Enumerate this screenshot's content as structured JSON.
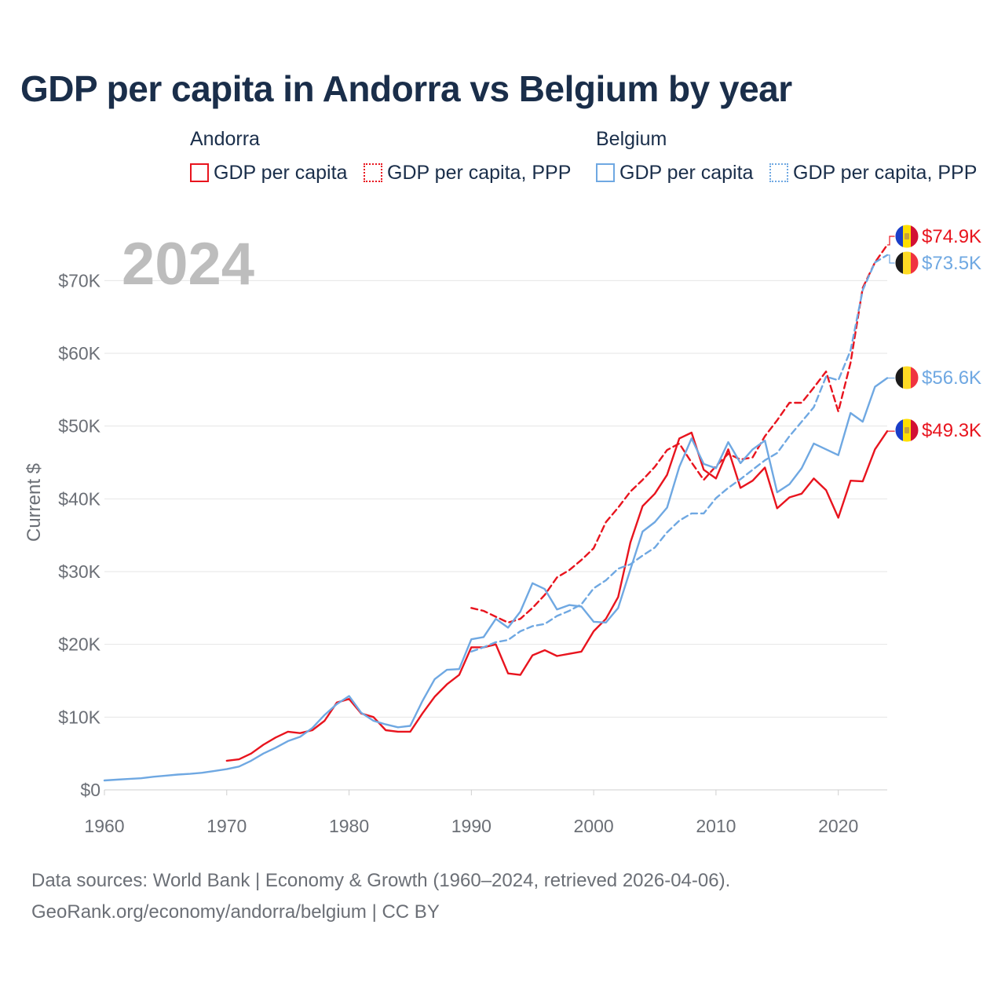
{
  "title": "GDP per capita in Andorra vs Belgium by year",
  "legend": {
    "groups": [
      {
        "name": "Andorra",
        "items": [
          {
            "label": "GDP per capita",
            "color": "#e8141e",
            "style": "solid"
          },
          {
            "label": "GDP per capita, PPP",
            "color": "#e8141e",
            "style": "dotted"
          }
        ]
      },
      {
        "name": "Belgium",
        "items": [
          {
            "label": "GDP per capita",
            "color": "#6fa8e2",
            "style": "solid"
          },
          {
            "label": "GDP per capita, PPP",
            "color": "#6fa8e2",
            "style": "dotted"
          }
        ]
      }
    ]
  },
  "year_label": "2024",
  "footer": {
    "line1": "Data sources: World Bank | Economy & Growth (1960–2024, retrieved 2026-04-06).",
    "line2": "GeoRank.org/economy/andorra/belgium | CC BY"
  },
  "chart_data": {
    "type": "line",
    "title": "GDP per capita in Andorra vs Belgium by year",
    "xlabel": "",
    "ylabel": "Current $",
    "xlim": [
      1960,
      2024
    ],
    "ylim": [
      0,
      75000
    ],
    "x_ticks": [
      1960,
      1970,
      1980,
      1990,
      2000,
      2010,
      2020
    ],
    "x_tick_labels": [
      "1960",
      "1970",
      "1980",
      "1990",
      "2000",
      "2010",
      "2020"
    ],
    "y_ticks": [
      0,
      10000,
      20000,
      30000,
      40000,
      50000,
      60000,
      70000
    ],
    "y_tick_labels": [
      "$0",
      "$10K",
      "$20K",
      "$30K",
      "$40K",
      "$50K",
      "$60K",
      "$70K"
    ],
    "grid": true,
    "series": [
      {
        "name": "Andorra GDP per capita",
        "color": "#e8141e",
        "dash": "solid",
        "x": [
          1970,
          1971,
          1972,
          1973,
          1974,
          1975,
          1976,
          1977,
          1978,
          1979,
          1980,
          1981,
          1982,
          1983,
          1984,
          1985,
          1986,
          1987,
          1988,
          1989,
          1990,
          1991,
          1992,
          1993,
          1994,
          1995,
          1996,
          1997,
          1998,
          1999,
          2000,
          2001,
          2002,
          2003,
          2004,
          2005,
          2006,
          2007,
          2008,
          2009,
          2010,
          2011,
          2012,
          2013,
          2014,
          2015,
          2016,
          2017,
          2018,
          2019,
          2020,
          2021,
          2022,
          2023,
          2024
        ],
        "values": [
          4000,
          4200,
          5000,
          6200,
          7200,
          8000,
          7800,
          8200,
          9500,
          12000,
          12500,
          10500,
          10000,
          8200,
          8000,
          8000,
          10500,
          12800,
          14500,
          15800,
          19600,
          19600,
          20000,
          16000,
          15800,
          18500,
          19200,
          18400,
          18700,
          19000,
          21800,
          23500,
          26500,
          34000,
          39000,
          40700,
          43300,
          48300,
          49100,
          44000,
          42800,
          46800,
          41500,
          42500,
          44300,
          38700,
          40200,
          40700,
          42800,
          41200,
          37400,
          42500,
          42400,
          46800,
          49300
        ],
        "end_label": "$49.3K"
      },
      {
        "name": "Andorra GDP per capita, PPP",
        "color": "#e8141e",
        "dash": "dashed",
        "x": [
          1990,
          1991,
          1992,
          1993,
          1994,
          1995,
          1996,
          1997,
          1998,
          1999,
          2000,
          2001,
          2002,
          2003,
          2004,
          2005,
          2006,
          2007,
          2008,
          2009,
          2010,
          2011,
          2012,
          2013,
          2014,
          2015,
          2016,
          2017,
          2018,
          2019,
          2020,
          2021,
          2022,
          2023,
          2024
        ],
        "values": [
          25000,
          24600,
          23800,
          23000,
          23500,
          25000,
          26800,
          29200,
          30200,
          31600,
          33200,
          36800,
          38800,
          41000,
          42600,
          44400,
          46700,
          47600,
          45000,
          42600,
          44500,
          46200,
          45400,
          45700,
          48600,
          50800,
          53200,
          53200,
          55300,
          57500,
          52000,
          58700,
          69000,
          72500,
          74900
        ],
        "end_label": "$74.9K"
      },
      {
        "name": "Belgium GDP per capita",
        "color": "#6fa8e2",
        "dash": "solid",
        "x": [
          1960,
          1961,
          1962,
          1963,
          1964,
          1965,
          1966,
          1967,
          1968,
          1969,
          1970,
          1971,
          1972,
          1973,
          1974,
          1975,
          1976,
          1977,
          1978,
          1979,
          1980,
          1981,
          1982,
          1983,
          1984,
          1985,
          1986,
          1987,
          1988,
          1989,
          1990,
          1991,
          1992,
          1993,
          1994,
          1995,
          1996,
          1997,
          1998,
          1999,
          2000,
          2001,
          2002,
          2003,
          2004,
          2005,
          2006,
          2007,
          2008,
          2009,
          2010,
          2011,
          2012,
          2013,
          2014,
          2015,
          2016,
          2017,
          2018,
          2019,
          2020,
          2021,
          2022,
          2023,
          2024
        ],
        "values": [
          1300,
          1400,
          1500,
          1600,
          1800,
          1950,
          2100,
          2200,
          2350,
          2600,
          2850,
          3200,
          4000,
          5000,
          5800,
          6700,
          7300,
          8500,
          10300,
          11800,
          12900,
          10600,
          9500,
          9000,
          8600,
          8800,
          12200,
          15200,
          16500,
          16600,
          20700,
          21000,
          23500,
          22300,
          24500,
          28400,
          27600,
          24800,
          25400,
          25200,
          23100,
          23000,
          25000,
          30300,
          35500,
          36800,
          38800,
          44400,
          48300,
          44800,
          44200,
          47800,
          44900,
          46800,
          48000,
          40900,
          42000,
          44200,
          47600,
          46800,
          46000,
          51800,
          50600,
          55400,
          56600
        ],
        "end_label": "$56.6K"
      },
      {
        "name": "Belgium GDP per capita, PPP",
        "color": "#6fa8e2",
        "dash": "dashed",
        "x": [
          1990,
          1991,
          1992,
          1993,
          1994,
          1995,
          1996,
          1997,
          1998,
          1999,
          2000,
          2001,
          2002,
          2003,
          2004,
          2005,
          2006,
          2007,
          2008,
          2009,
          2010,
          2011,
          2012,
          2013,
          2014,
          2015,
          2016,
          2017,
          2018,
          2019,
          2020,
          2021,
          2022,
          2023,
          2024
        ],
        "values": [
          19000,
          19600,
          20300,
          20600,
          21800,
          22500,
          22800,
          23900,
          24600,
          25500,
          27700,
          28800,
          30400,
          31000,
          32200,
          33300,
          35400,
          37000,
          38000,
          38000,
          40100,
          41500,
          42700,
          44000,
          45300,
          46300,
          48600,
          50600,
          52600,
          56800,
          56300,
          60400,
          68700,
          72500,
          73500
        ],
        "end_label": "$73.5K"
      }
    ],
    "end_markers": [
      {
        "country": "Andorra",
        "series": "Andorra GDP per capita, PPP",
        "flag": "andorra-flag"
      },
      {
        "country": "Belgium",
        "series": "Belgium GDP per capita, PPP",
        "flag": "belgium-flag"
      },
      {
        "country": "Belgium",
        "series": "Belgium GDP per capita",
        "flag": "belgium-flag"
      },
      {
        "country": "Andorra",
        "series": "Andorra GDP per capita",
        "flag": "andorra-flag"
      }
    ]
  }
}
